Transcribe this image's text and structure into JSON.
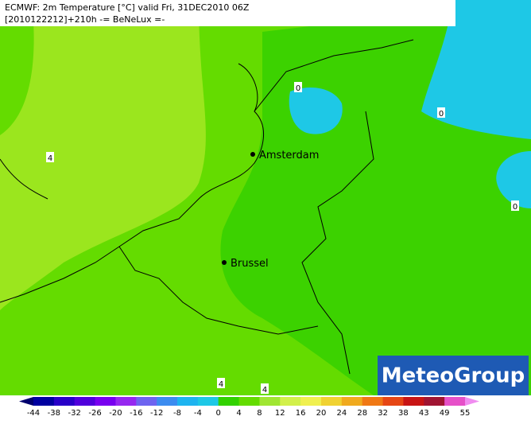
{
  "header": {
    "line1": "ECMWF: 2m Temperature [°C] valid Fri, 31DEC2010 06Z",
    "line2": "[2010122212]+210h  -= BeNeLux =-"
  },
  "cities": [
    {
      "label": "Amsterdam"
    },
    {
      "label": "Brussel"
    }
  ],
  "contour_labels": [
    "0",
    "0",
    "0",
    "4",
    "4",
    "4"
  ],
  "logo": "MeteoGroup",
  "colorbar": {
    "labels": [
      "-44",
      "-38",
      "-32",
      "-26",
      "-20",
      "-16",
      "-12",
      "-8",
      "-4",
      "0",
      "4",
      "8",
      "12",
      "16",
      "20",
      "24",
      "28",
      "32",
      "38",
      "43",
      "49",
      "55"
    ],
    "colors": [
      "#00006e",
      "#0000a0",
      "#2800c8",
      "#5000dc",
      "#7800f0",
      "#9628f0",
      "#6e64f0",
      "#3c8cf0",
      "#1eb4f0",
      "#1ec8e6",
      "#32d200",
      "#64dc00",
      "#a0e632",
      "#d2f04b",
      "#f0f050",
      "#f0d232",
      "#f0aa1e",
      "#f07814",
      "#e64614",
      "#c81414",
      "#a01432",
      "#e650c8",
      "#f08cf0"
    ]
  }
}
